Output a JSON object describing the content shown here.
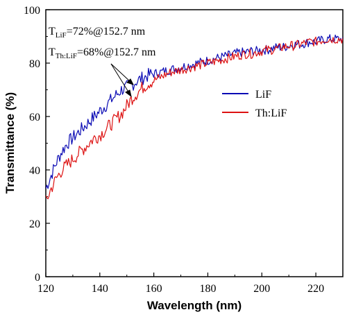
{
  "chart_data": {
    "type": "line",
    "title": "",
    "xlabel": "Wavelength (nm)",
    "ylabel": "Transmittance (%)",
    "xlim": [
      120,
      230
    ],
    "ylim": [
      0,
      100
    ],
    "x_ticks": [
      120,
      140,
      160,
      180,
      200,
      220
    ],
    "y_ticks": [
      0,
      20,
      40,
      60,
      80,
      100
    ],
    "legend_position": "center-right",
    "grid": false,
    "series": [
      {
        "name": "LiF",
        "color": "#0a0ab4",
        "x": [
          120,
          122,
          124,
          126,
          128,
          130,
          132,
          134,
          136,
          138,
          140,
          142,
          144,
          146,
          148,
          150,
          152,
          154,
          156,
          158,
          160,
          162,
          164,
          166,
          168,
          170,
          172,
          174,
          176,
          178,
          180,
          182,
          184,
          186,
          188,
          190,
          192,
          194,
          196,
          198,
          200,
          202,
          204,
          206,
          208,
          210,
          212,
          214,
          216,
          218,
          220,
          222,
          224,
          226,
          228,
          230
        ],
        "values": [
          33,
          38,
          43,
          47,
          50,
          52,
          54,
          56,
          58,
          60,
          62,
          64,
          66,
          68,
          70,
          71,
          72,
          73.5,
          74.5,
          75.5,
          76,
          76.5,
          77,
          77.5,
          78,
          78.5,
          79,
          79.5,
          80,
          80.5,
          81,
          81.5,
          82,
          82.5,
          83,
          83.5,
          84,
          84,
          84.5,
          84.5,
          85,
          85,
          85.5,
          86,
          86,
          86.5,
          87,
          87,
          87.5,
          88,
          88,
          88.5,
          89,
          89,
          89,
          89
        ]
      },
      {
        "name": "Th:LiF",
        "color": "#dd1111",
        "x": [
          120,
          122,
          124,
          126,
          128,
          130,
          132,
          134,
          136,
          138,
          140,
          142,
          144,
          146,
          148,
          150,
          152,
          154,
          156,
          158,
          160,
          162,
          164,
          166,
          168,
          170,
          172,
          174,
          176,
          178,
          180,
          182,
          184,
          186,
          188,
          190,
          192,
          194,
          196,
          198,
          200,
          202,
          204,
          206,
          208,
          210,
          212,
          214,
          216,
          218,
          220,
          222,
          224,
          226,
          228,
          230
        ],
        "values": [
          28,
          33,
          37,
          40,
          42,
          44,
          46,
          48,
          50,
          52,
          53,
          55,
          57,
          59,
          61,
          64,
          67,
          69,
          71,
          72.5,
          73.5,
          74.5,
          75.5,
          76.5,
          77,
          77.5,
          78,
          78.5,
          79,
          79.5,
          80,
          80.5,
          81,
          81.5,
          82,
          82.5,
          83,
          83.5,
          83.5,
          84,
          84.5,
          85,
          85,
          85.5,
          86,
          86.5,
          86.5,
          87,
          87.5,
          88,
          88,
          88.5,
          89,
          89,
          89,
          89
        ]
      }
    ],
    "annotations": [
      {
        "main": "T",
        "sub": "LiF",
        "rest": "=72%@152.7 nm"
      },
      {
        "main": "T",
        "sub": "Th:LiF",
        "rest": "=68%@152.7 nm"
      }
    ]
  }
}
